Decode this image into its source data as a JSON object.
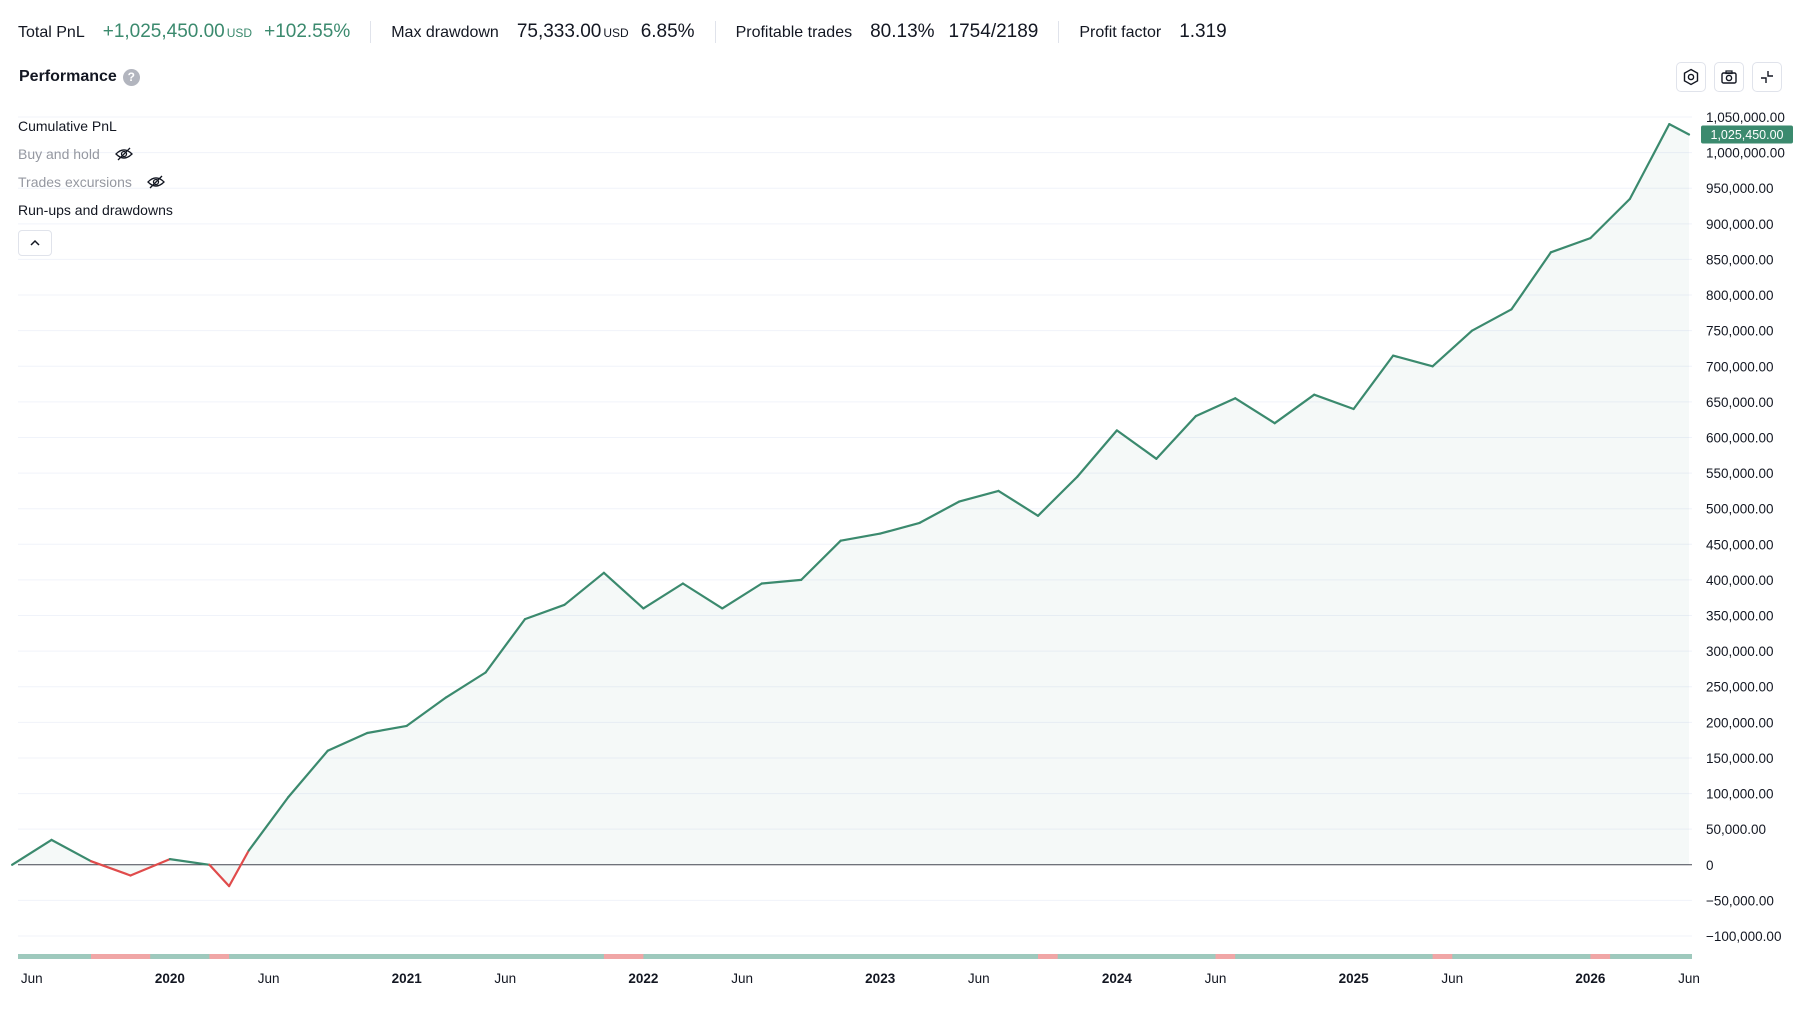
{
  "stats": {
    "total_pnl": {
      "label": "Total PnL",
      "value": "+1,025,450.00",
      "unit": "USD",
      "pct": "+102.55%"
    },
    "max_drawdown": {
      "label": "Max drawdown",
      "value": "75,333.00",
      "unit": "USD",
      "pct": "6.85%"
    },
    "profitable_trades": {
      "label": "Profitable trades",
      "value": "80.13%",
      "extra": "1754/2189"
    },
    "profit_factor": {
      "label": "Profit factor",
      "value": "1.319"
    }
  },
  "panel": {
    "title": "Performance",
    "help": "?"
  },
  "toolbar": {
    "icons": [
      "settings-icon",
      "camera-icon",
      "collapse-icon"
    ]
  },
  "legend": {
    "items": [
      {
        "label": "Cumulative PnL",
        "visible": true
      },
      {
        "label": "Buy and hold",
        "visible": false
      },
      {
        "label": "Trades excursions",
        "visible": false
      },
      {
        "label": "Run-ups and drawdowns",
        "visible": true
      }
    ]
  },
  "colors": {
    "positive": "#3b8a6e",
    "negative": "#e04b4b",
    "runup": "#9ec9bd",
    "drawdown": "#f0a6a6"
  },
  "chart_data": {
    "type": "area",
    "series": [
      {
        "name": "Cumulative PnL",
        "color": "#3b8a6e"
      }
    ],
    "x": [
      "2019-05",
      "2019-07",
      "2019-09",
      "2019-11",
      "2020-01",
      "2020-03",
      "2020-04",
      "2020-05",
      "2020-07",
      "2020-09",
      "2020-11",
      "2021-01",
      "2021-03",
      "2021-05",
      "2021-07",
      "2021-09",
      "2021-11",
      "2022-01",
      "2022-03",
      "2022-05",
      "2022-07",
      "2022-09",
      "2022-11",
      "2023-01",
      "2023-03",
      "2023-05",
      "2023-07",
      "2023-09",
      "2023-11",
      "2024-01",
      "2024-03",
      "2024-05",
      "2024-07",
      "2024-09",
      "2024-11",
      "2025-01",
      "2025-03",
      "2025-05",
      "2025-07",
      "2025-09",
      "2025-11",
      "2026-01",
      "2026-03",
      "2026-05",
      "2026-06"
    ],
    "values": [
      0,
      35000,
      5000,
      -15000,
      8000,
      0,
      -30000,
      20000,
      95000,
      160000,
      185000,
      195000,
      235000,
      270000,
      345000,
      365000,
      410000,
      360000,
      395000,
      360000,
      395000,
      400000,
      455000,
      465000,
      480000,
      510000,
      525000,
      490000,
      545000,
      610000,
      570000,
      630000,
      655000,
      620000,
      660000,
      640000,
      715000,
      700000,
      750000,
      780000,
      860000,
      880000,
      935000,
      1040000,
      1025450
    ],
    "last_value_label": "1,025,450.00",
    "y_ticks": [
      "1,050,000.00",
      "1,000,000.00",
      "950,000.00",
      "900,000.00",
      "850,000.00",
      "800,000.00",
      "750,000.00",
      "700,000.00",
      "650,000.00",
      "600,000.00",
      "550,000.00",
      "500,000.00",
      "450,000.00",
      "400,000.00",
      "350,000.00",
      "300,000.00",
      "250,000.00",
      "200,000.00",
      "150,000.00",
      "100,000.00",
      "50,000.00",
      "0",
      "−50,000.00",
      "−100,000.00"
    ],
    "ylim": [
      -100000,
      1050000
    ],
    "x_ticks": [
      {
        "label": "Jun",
        "date": "2019-06",
        "year": false
      },
      {
        "label": "2020",
        "date": "2020-01",
        "year": true
      },
      {
        "label": "Jun",
        "date": "2020-06",
        "year": false
      },
      {
        "label": "2021",
        "date": "2021-01",
        "year": true
      },
      {
        "label": "Jun",
        "date": "2021-06",
        "year": false
      },
      {
        "label": "2022",
        "date": "2022-01",
        "year": true
      },
      {
        "label": "Jun",
        "date": "2022-06",
        "year": false
      },
      {
        "label": "2023",
        "date": "2023-01",
        "year": true
      },
      {
        "label": "Jun",
        "date": "2023-06",
        "year": false
      },
      {
        "label": "2024",
        "date": "2024-01",
        "year": true
      },
      {
        "label": "Jun",
        "date": "2024-06",
        "year": false
      },
      {
        "label": "2025",
        "date": "2025-01",
        "year": true
      },
      {
        "label": "Jun",
        "date": "2025-06",
        "year": false
      },
      {
        "label": "2026",
        "date": "2026-01",
        "year": true
      },
      {
        "label": "Jun",
        "date": "2026-06",
        "year": false
      }
    ],
    "grid": true,
    "drawdown_periods": [
      [
        "2019-09",
        "2019-12"
      ],
      [
        "2020-03",
        "2020-04"
      ],
      [
        "2021-11",
        "2022-01"
      ],
      [
        "2023-09",
        "2023-10"
      ],
      [
        "2024-06",
        "2024-07"
      ],
      [
        "2025-05",
        "2025-06"
      ],
      [
        "2026-01",
        "2026-02"
      ]
    ]
  }
}
